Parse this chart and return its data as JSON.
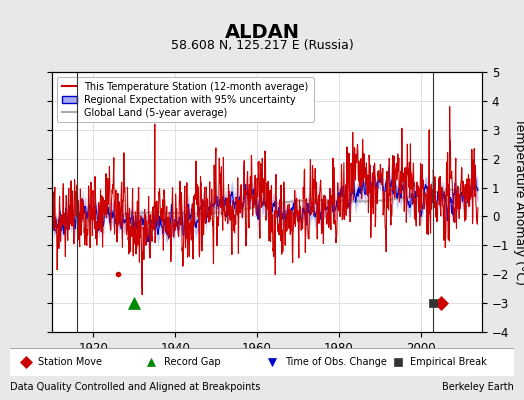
{
  "title": "ALDAN",
  "subtitle": "58.608 N, 125.217 E (Russia)",
  "ylabel": "Temperature Anomaly (°C)",
  "xlabel_left": "Data Quality Controlled and Aligned at Breakpoints",
  "xlabel_right": "Berkeley Earth",
  "ylim": [
    -4,
    5
  ],
  "xlim": [
    1910,
    2015
  ],
  "xticks": [
    1920,
    1940,
    1960,
    1980,
    2000
  ],
  "yticks": [
    -4,
    -3,
    -2,
    -1,
    0,
    1,
    2,
    3,
    4,
    5
  ],
  "bg_color": "#e8e8e8",
  "plot_bg_color": "#ffffff",
  "grid_color": "#cccccc",
  "red_line_color": "#cc0000",
  "blue_line_color": "#0000cc",
  "blue_fill_color": "#aaaaee",
  "gray_line_color": "#aaaaaa",
  "station_move_color": "#cc0000",
  "record_gap_color": "#008800",
  "obs_change_color": "#0000cc",
  "empirical_break_color": "#333333",
  "vertical_line_color": "#333333",
  "start_year": 1910,
  "end_year": 2014,
  "event_station_move": [
    2005
  ],
  "event_record_gap": [
    1930
  ],
  "event_empirical_break": [
    2003
  ],
  "vertical_lines": [
    1916,
    2003
  ],
  "station_move_marker_y": -3.0,
  "event_marker_y": -3.0,
  "small_red_marker_year": 1926,
  "small_red_marker_y": -2.0
}
